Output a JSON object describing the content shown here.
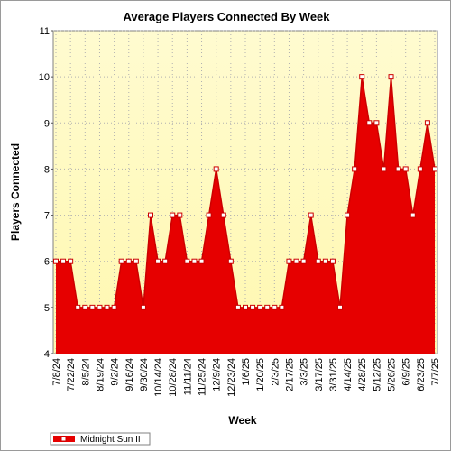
{
  "chart_data": {
    "type": "area",
    "title": "Average Players Connected By Week",
    "xlabel": "Week",
    "ylabel": "Players Connected",
    "ylim": [
      4,
      11
    ],
    "yticks": [
      4,
      5,
      6,
      7,
      8,
      9,
      10,
      11
    ],
    "grid": true,
    "legend_position": "bottom-left",
    "colors": {
      "area_fill": "#e60000",
      "line": "#cc0000",
      "marker_fill": "#ffffff",
      "plot_bg_top": "#fffbd0",
      "plot_bg_bottom": "#fff8b0",
      "grid": "#b0b0b0"
    },
    "x": [
      "7/8/24",
      "7/15/24",
      "7/22/24",
      "7/29/24",
      "8/5/24",
      "8/12/24",
      "8/19/24",
      "8/26/24",
      "9/2/24",
      "9/9/24",
      "9/16/24",
      "9/23/24",
      "9/30/24",
      "10/7/24",
      "10/14/24",
      "10/21/24",
      "10/28/24",
      "11/4/24",
      "11/11/24",
      "11/18/24",
      "11/25/24",
      "12/2/24",
      "12/9/24",
      "12/16/24",
      "12/23/24",
      "12/30/24",
      "1/6/25",
      "1/13/25",
      "1/20/25",
      "1/27/25",
      "2/3/25",
      "2/10/25",
      "2/17/25",
      "2/24/25",
      "3/3/25",
      "3/10/25",
      "3/17/25",
      "3/24/25",
      "3/31/25",
      "4/7/25",
      "4/14/25",
      "4/21/25",
      "4/28/25",
      "5/5/25",
      "5/12/25",
      "5/19/25",
      "5/26/25",
      "6/2/25",
      "6/9/25",
      "6/16/25",
      "6/23/25",
      "6/30/25",
      "7/7/25"
    ],
    "tick_labels": [
      "7/8/24",
      "7/22/24",
      "8/5/24",
      "8/19/24",
      "9/2/24",
      "9/16/24",
      "9/30/24",
      "10/14/24",
      "10/28/24",
      "11/11/24",
      "11/25/24",
      "12/9/24",
      "12/23/24",
      "1/6/25",
      "1/20/25",
      "2/3/25",
      "2/17/25",
      "3/3/25",
      "3/17/25",
      "3/31/25",
      "4/14/25",
      "4/28/25",
      "5/12/25",
      "5/26/25",
      "6/9/25",
      "6/23/25",
      "7/7/25"
    ],
    "series": [
      {
        "name": "Midnight Sun II",
        "values": [
          6,
          6,
          6,
          5,
          5,
          5,
          5,
          5,
          5,
          6,
          6,
          6,
          5,
          7,
          6,
          6,
          7,
          7,
          6,
          6,
          6,
          7,
          8,
          7,
          6,
          5,
          5,
          5,
          5,
          5,
          5,
          5,
          6,
          6,
          6,
          7,
          6,
          6,
          6,
          5,
          7,
          8,
          10,
          9,
          9,
          8,
          10,
          8,
          8,
          7,
          8,
          9,
          8
        ]
      }
    ]
  }
}
